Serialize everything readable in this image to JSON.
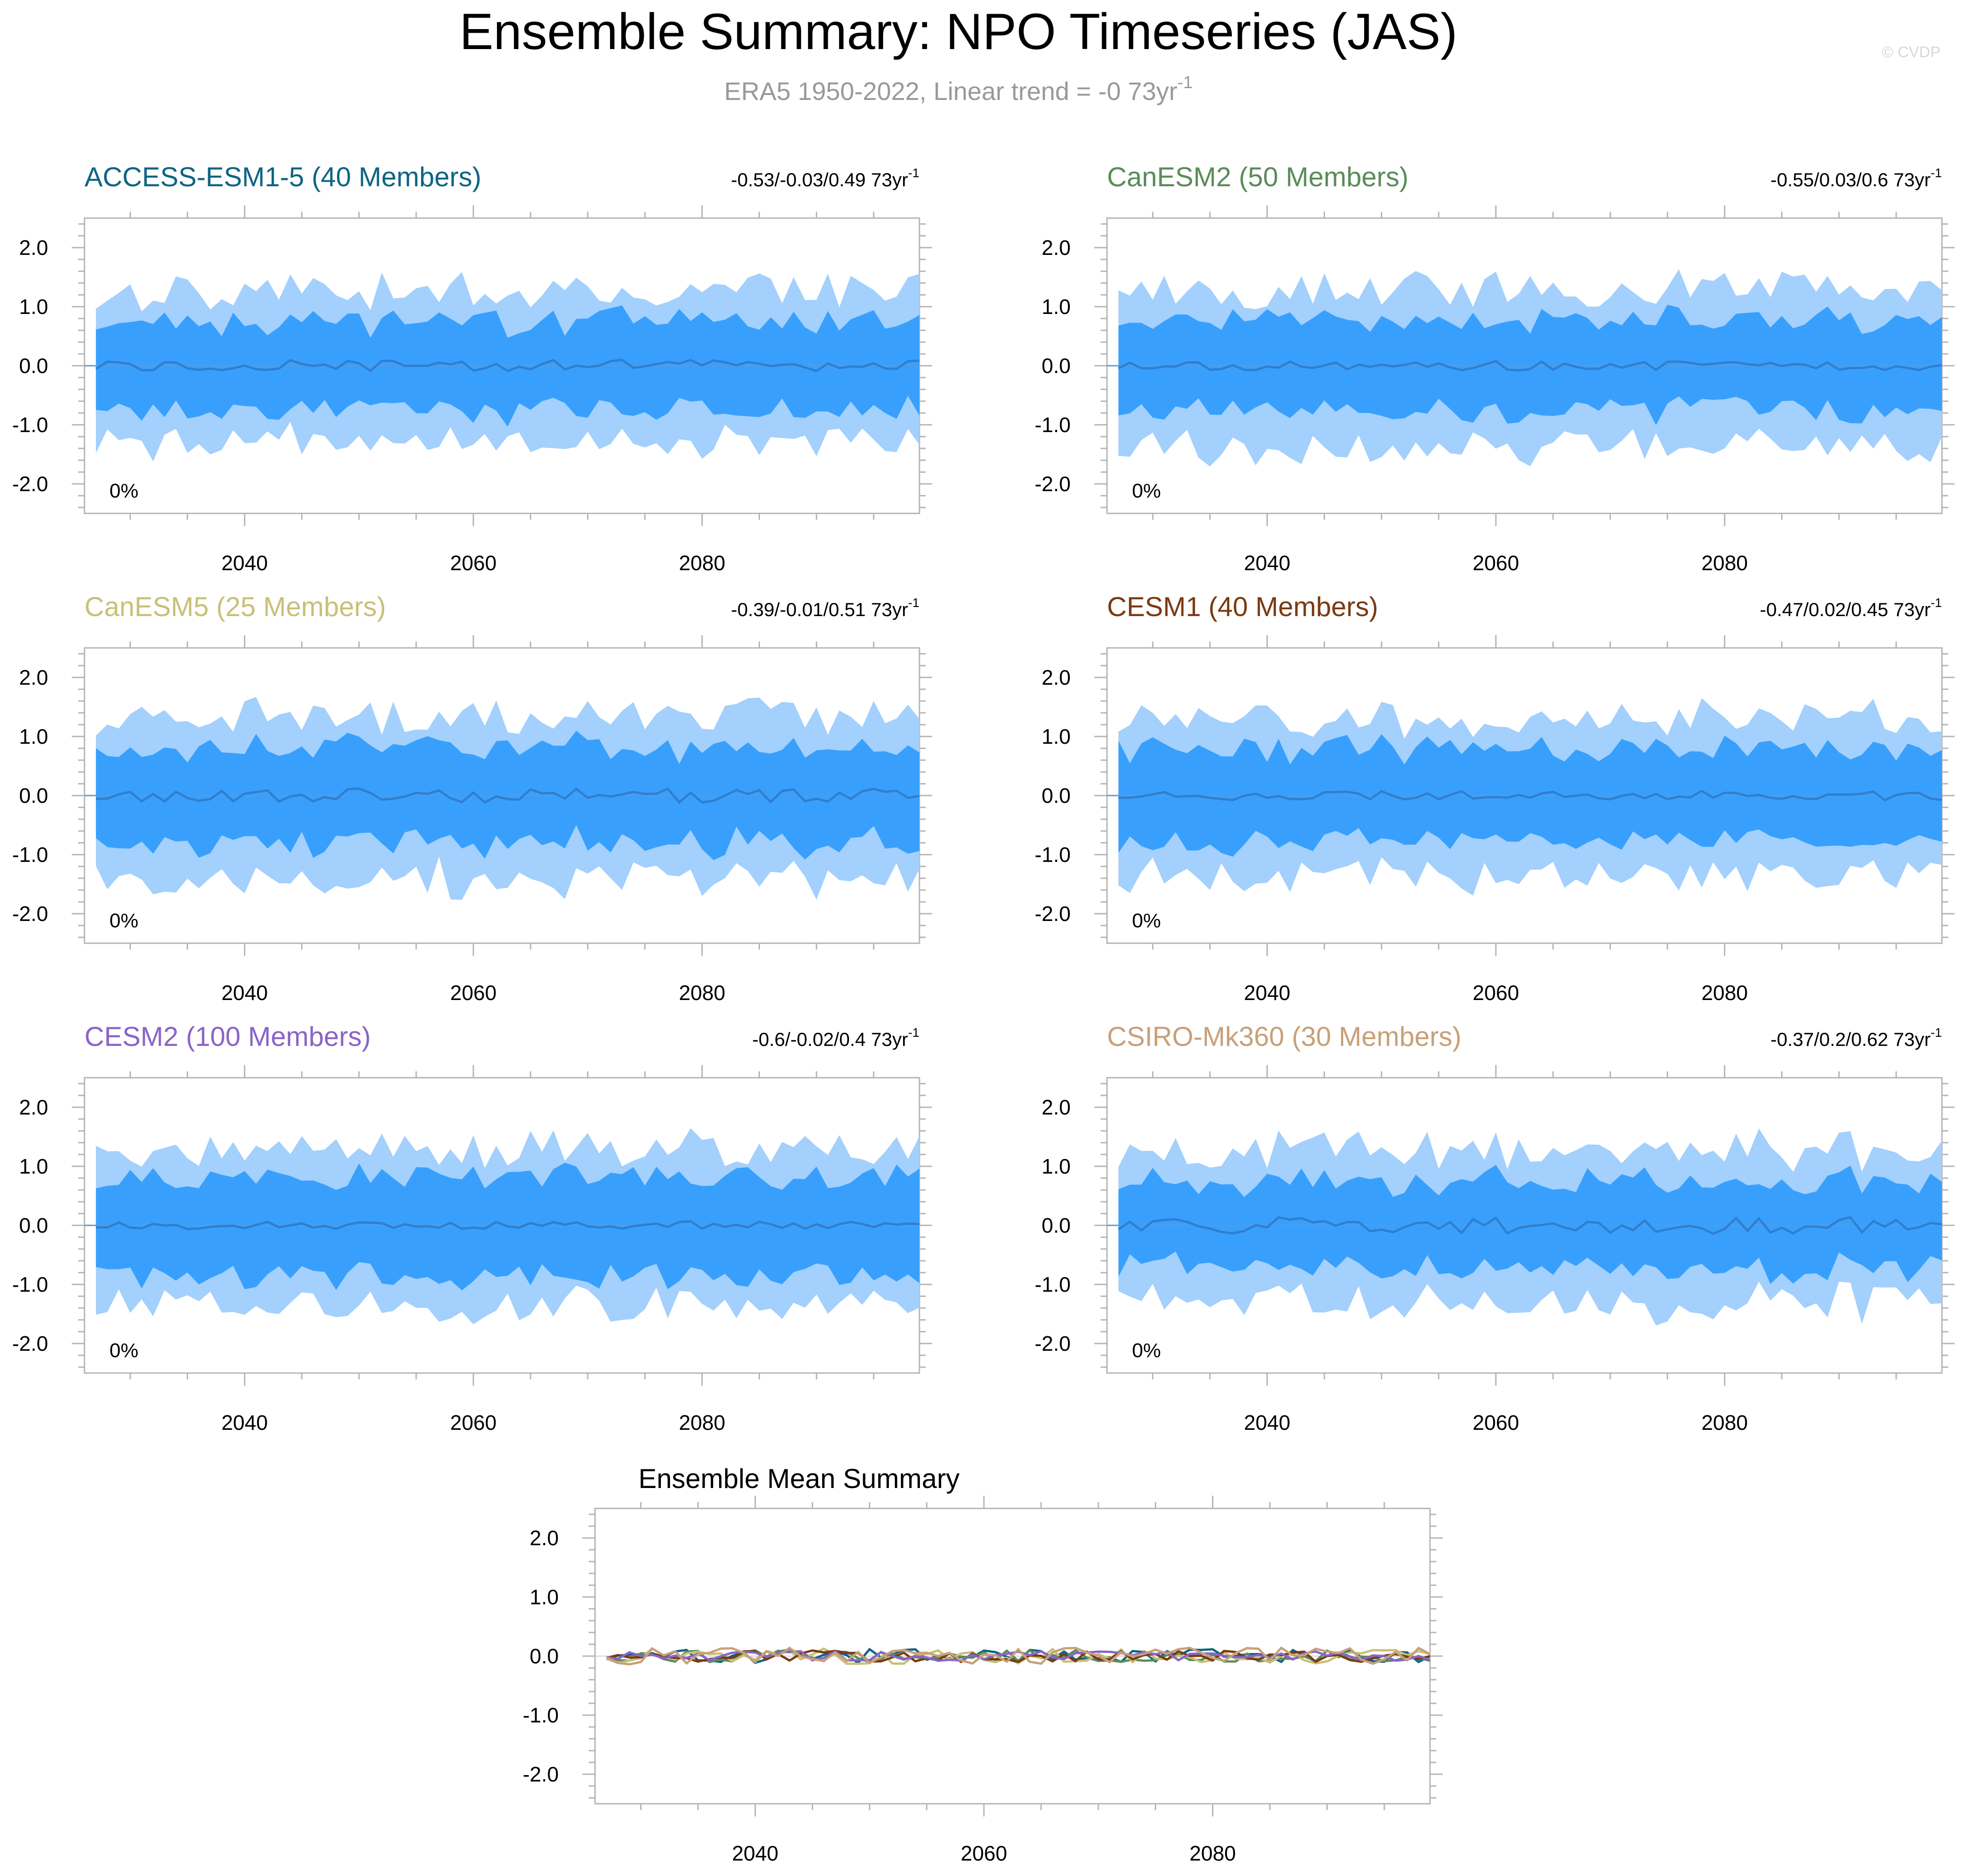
{
  "figure": {
    "title": "Ensemble Summary: NPO Timeseries (JAS)",
    "subtitle_main": "ERA5 1950-2022, Linear trend = -0 73yr",
    "subtitle_exp": "-1",
    "watermark": "© CVDP"
  },
  "colors": {
    "outer_band": "#a3d0fc",
    "inner_band": "#38a0fc",
    "mean_line": "#2f7fd0",
    "axis": "#b4b4b4",
    "zero_line": "#5a9ad6"
  },
  "chart_data": [
    {
      "type": "area",
      "title": "ACCESS-ESM1-5 (40 Members)",
      "title_color": "#0e6583",
      "trend_label": "-0.53/-0.03/0.49 73yr",
      "trend_exp": "-1",
      "percent_label": "0%",
      "xlim": [
        2026,
        2099
      ],
      "ylim": [
        -2.5,
        2.5
      ],
      "xticks": [
        2040,
        2060,
        2080
      ],
      "yticks": [
        2.0,
        1.0,
        0.0,
        -1.0,
        -2.0
      ],
      "ytick_labels": [
        "2.0",
        "1.0",
        "0.0",
        "-1.0",
        "-2.0"
      ],
      "x_start": 2027,
      "x_end": 2099,
      "seed": 11,
      "outer_amp": 1.25,
      "inner_amp": 0.7,
      "mean_amp": 0.1
    },
    {
      "type": "area",
      "title": "CanESM2 (50 Members)",
      "title_color": "#5a8c5a",
      "trend_label": "-0.55/0.03/0.6 73yr",
      "trend_exp": "-1",
      "percent_label": "0%",
      "xlim": [
        2026,
        2099
      ],
      "ylim": [
        -2.5,
        2.5
      ],
      "xticks": [
        2040,
        2060,
        2080
      ],
      "yticks": [
        2.0,
        1.0,
        0.0,
        -1.0,
        -2.0
      ],
      "ytick_labels": [
        "2.0",
        "1.0",
        "0.0",
        "-1.0",
        "-2.0"
      ],
      "x_start": 2027,
      "x_end": 2099,
      "seed": 23,
      "outer_amp": 1.3,
      "inner_amp": 0.72,
      "mean_amp": 0.08
    },
    {
      "type": "area",
      "title": "CanESM5 (25 Members)",
      "title_color": "#c8c078",
      "trend_label": "-0.39/-0.01/0.51 73yr",
      "trend_exp": "-1",
      "percent_label": "0%",
      "xlim": [
        2026,
        2099
      ],
      "ylim": [
        -2.5,
        2.5
      ],
      "xticks": [
        2040,
        2060,
        2080
      ],
      "yticks": [
        2.0,
        1.0,
        0.0,
        -1.0,
        -2.0
      ],
      "ytick_labels": [
        "2.0",
        "1.0",
        "0.0",
        "-1.0",
        "-2.0"
      ],
      "x_start": 2027,
      "x_end": 2099,
      "seed": 37,
      "outer_amp": 1.35,
      "inner_amp": 0.75,
      "mean_amp": 0.12
    },
    {
      "type": "area",
      "title": "CESM1 (40 Members)",
      "title_color": "#7a3a10",
      "trend_label": "-0.47/0.02/0.45 73yr",
      "trend_exp": "-1",
      "percent_label": "0%",
      "xlim": [
        2026,
        2099
      ],
      "ylim": [
        -2.5,
        2.5
      ],
      "xticks": [
        2040,
        2060,
        2080
      ],
      "yticks": [
        2.0,
        1.0,
        0.0,
        -1.0,
        -2.0
      ],
      "ytick_labels": [
        "2.0",
        "1.0",
        "0.0",
        "-1.0",
        "-2.0"
      ],
      "x_start": 2027,
      "x_end": 2099,
      "seed": 41,
      "outer_amp": 1.3,
      "inner_amp": 0.72,
      "mean_amp": 0.08
    },
    {
      "type": "area",
      "title": "CESM2 (100 Members)",
      "title_color": "#8a64c8",
      "trend_label": "-0.6/-0.02/0.4 73yr",
      "trend_exp": "-1",
      "percent_label": "0%",
      "xlim": [
        2026,
        2099
      ],
      "ylim": [
        -2.5,
        2.5
      ],
      "xticks": [
        2040,
        2060,
        2080
      ],
      "yticks": [
        2.0,
        1.0,
        0.0,
        -1.0,
        -2.0
      ],
      "ytick_labels": [
        "2.0",
        "1.0",
        "0.0",
        "-1.0",
        "-2.0"
      ],
      "x_start": 2027,
      "x_end": 2099,
      "seed": 53,
      "outer_amp": 1.3,
      "inner_amp": 0.78,
      "mean_amp": 0.07
    },
    {
      "type": "area",
      "title": "CSIRO-Mk360 (30 Members)",
      "title_color": "#c8a078",
      "trend_label": "-0.37/0.2/0.62 73yr",
      "trend_exp": "-1",
      "percent_label": "0%",
      "xlim": [
        2026,
        2099
      ],
      "ylim": [
        -2.5,
        2.5
      ],
      "xticks": [
        2040,
        2060,
        2080
      ],
      "yticks": [
        2.0,
        1.0,
        0.0,
        -1.0,
        -2.0
      ],
      "ytick_labels": [
        "2.0",
        "1.0",
        "0.0",
        "-1.0",
        "-2.0"
      ],
      "x_start": 2027,
      "x_end": 2099,
      "seed": 67,
      "outer_amp": 1.25,
      "inner_amp": 0.68,
      "mean_amp": 0.14
    },
    {
      "type": "line",
      "title": "Ensemble Mean Summary",
      "xlim": [
        2026,
        2099
      ],
      "ylim": [
        -2.5,
        2.5
      ],
      "xticks": [
        2040,
        2060,
        2080
      ],
      "yticks": [
        2.0,
        1.0,
        0.0,
        -1.0,
        -2.0
      ],
      "ytick_labels": [
        "2.0",
        "1.0",
        "0.0",
        "-1.0",
        "-2.0"
      ],
      "x_start": 2027,
      "x_end": 2099,
      "series": [
        {
          "name": "ACCESS-ESM1-5",
          "color": "#0e6583",
          "seed": 11,
          "amp": 0.12
        },
        {
          "name": "CanESM2",
          "color": "#5a8c5a",
          "seed": 23,
          "amp": 0.1
        },
        {
          "name": "CanESM5",
          "color": "#c8c078",
          "seed": 37,
          "amp": 0.13
        },
        {
          "name": "CESM1",
          "color": "#7a3a10",
          "seed": 41,
          "amp": 0.1
        },
        {
          "name": "CESM2",
          "color": "#8a64c8",
          "seed": 53,
          "amp": 0.08
        },
        {
          "name": "CSIRO-Mk360",
          "color": "#c8a078",
          "seed": 67,
          "amp": 0.14
        }
      ]
    }
  ]
}
